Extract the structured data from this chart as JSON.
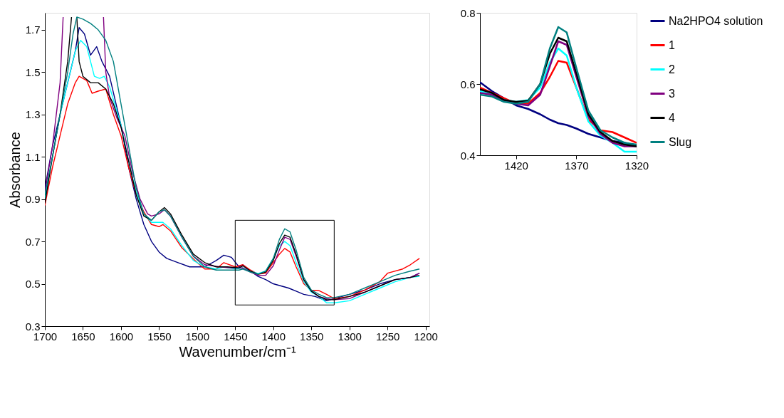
{
  "chart_data": [
    {
      "type": "line",
      "xlabel": "Wavenumber/cm⁻¹",
      "ylabel": "Absorbance",
      "xlim": [
        1700,
        1195
      ],
      "ylim": [
        0.3,
        1.78
      ],
      "xticks": [
        1700,
        1650,
        1600,
        1550,
        1500,
        1450,
        1400,
        1350,
        1300,
        1250,
        1200
      ],
      "yticks": [
        0.3,
        0.5,
        0.7,
        0.9,
        1.1,
        1.3,
        1.5,
        1.7
      ],
      "grid": false,
      "legend": false,
      "series": [
        {
          "color": "#000080",
          "x": [
            1700,
            1690,
            1680,
            1670,
            1660,
            1655,
            1648,
            1640,
            1632,
            1625,
            1615,
            1600,
            1590,
            1580,
            1570,
            1560,
            1550,
            1540,
            1525,
            1510,
            1490,
            1475,
            1465,
            1455,
            1445,
            1440,
            1430,
            1420,
            1410,
            1400,
            1390,
            1380,
            1370,
            1360,
            1345,
            1330,
            1320,
            1300,
            1280,
            1260,
            1240,
            1220,
            1208
          ],
          "values": [
            0.95,
            1.15,
            1.3,
            1.45,
            1.6,
            1.71,
            1.68,
            1.58,
            1.62,
            1.55,
            1.48,
            1.25,
            1.05,
            0.9,
            0.78,
            0.7,
            0.65,
            0.62,
            0.6,
            0.58,
            0.58,
            0.61,
            0.635,
            0.625,
            0.58,
            0.59,
            0.56,
            0.535,
            0.52,
            0.5,
            0.49,
            0.48,
            0.465,
            0.45,
            0.44,
            0.42,
            0.43,
            0.45,
            0.47,
            0.5,
            0.52,
            0.53,
            0.55
          ]
        },
        {
          "color": "#ff0000",
          "x": [
            1700,
            1690,
            1680,
            1670,
            1660,
            1655,
            1645,
            1638,
            1630,
            1620,
            1610,
            1600,
            1590,
            1580,
            1570,
            1560,
            1550,
            1545,
            1535,
            1520,
            1500,
            1490,
            1475,
            1465,
            1450,
            1440,
            1430,
            1420,
            1410,
            1400,
            1392,
            1385,
            1378,
            1370,
            1360,
            1350,
            1340,
            1330,
            1320,
            1300,
            1280,
            1260,
            1250,
            1230,
            1220,
            1208
          ],
          "values": [
            0.87,
            1.05,
            1.2,
            1.35,
            1.45,
            1.48,
            1.46,
            1.4,
            1.41,
            1.42,
            1.3,
            1.2,
            1.05,
            0.92,
            0.84,
            0.78,
            0.77,
            0.78,
            0.75,
            0.67,
            0.6,
            0.57,
            0.57,
            0.6,
            0.58,
            0.59,
            0.565,
            0.545,
            0.55,
            0.6,
            0.64,
            0.667,
            0.65,
            0.58,
            0.5,
            0.47,
            0.468,
            0.45,
            0.43,
            0.44,
            0.47,
            0.51,
            0.55,
            0.57,
            0.59,
            0.62
          ]
        },
        {
          "color": "#00ffff",
          "x": [
            1700,
            1690,
            1680,
            1670,
            1660,
            1653,
            1645,
            1635,
            1628,
            1622,
            1615,
            1600,
            1590,
            1580,
            1570,
            1560,
            1550,
            1545,
            1535,
            1520,
            1505,
            1490,
            1475,
            1465,
            1450,
            1440,
            1430,
            1420,
            1410,
            1400,
            1392,
            1385,
            1378,
            1370,
            1360,
            1350,
            1340,
            1330,
            1320,
            1300,
            1280,
            1260,
            1240,
            1220,
            1208
          ],
          "values": [
            0.9,
            1.1,
            1.3,
            1.45,
            1.6,
            1.65,
            1.62,
            1.48,
            1.47,
            1.48,
            1.43,
            1.25,
            1.08,
            0.93,
            0.83,
            0.79,
            0.79,
            0.79,
            0.76,
            0.68,
            0.61,
            0.58,
            0.57,
            0.58,
            0.57,
            0.575,
            0.56,
            0.548,
            0.56,
            0.62,
            0.68,
            0.7,
            0.68,
            0.6,
            0.51,
            0.46,
            0.44,
            0.41,
            0.41,
            0.42,
            0.45,
            0.48,
            0.51,
            0.53,
            0.535
          ]
        },
        {
          "color": "#800080",
          "x": [
            1700,
            1690,
            1680,
            1676,
            1665,
            1625,
            1623,
            1620,
            1615,
            1605,
            1595,
            1585,
            1575,
            1565,
            1560,
            1550,
            1543,
            1535,
            1520,
            1505,
            1490,
            1470,
            1455,
            1440,
            1430,
            1420,
            1410,
            1400,
            1392,
            1385,
            1378,
            1370,
            1360,
            1350,
            1340,
            1330,
            1320,
            1300,
            1280,
            1260,
            1240,
            1220,
            1208
          ],
          "values": [
            0.93,
            1.15,
            1.45,
            1.76,
            null,
            null,
            1.76,
            1.5,
            1.38,
            1.28,
            1.2,
            1.03,
            0.9,
            0.83,
            0.82,
            0.83,
            0.85,
            0.82,
            0.72,
            0.63,
            0.59,
            0.58,
            0.575,
            0.575,
            0.555,
            0.54,
            0.54,
            0.585,
            0.66,
            0.72,
            0.71,
            0.63,
            0.52,
            0.465,
            0.44,
            0.43,
            0.425,
            0.43,
            0.46,
            0.49,
            0.52,
            0.53,
            0.55
          ]
        },
        {
          "color": "#000000",
          "x": [
            1700,
            1690,
            1680,
            1670,
            1665,
            1660,
            1658,
            1655,
            1650,
            1640,
            1630,
            1620,
            1610,
            1600,
            1590,
            1580,
            1570,
            1560,
            1550,
            1543,
            1535,
            1520,
            1505,
            1490,
            1475,
            1460,
            1445,
            1440,
            1430,
            1420,
            1410,
            1400,
            1392,
            1385,
            1378,
            1370,
            1360,
            1350,
            1340,
            1330,
            1320,
            1300,
            1280,
            1260,
            1240,
            1220,
            1208
          ],
          "values": [
            0.88,
            1.1,
            1.3,
            1.55,
            1.76,
            null,
            1.76,
            1.55,
            1.48,
            1.45,
            1.45,
            1.42,
            1.35,
            1.24,
            1.08,
            0.92,
            0.82,
            0.8,
            0.84,
            0.86,
            0.83,
            0.73,
            0.64,
            0.6,
            0.58,
            0.58,
            0.575,
            0.585,
            0.56,
            0.545,
            0.555,
            0.61,
            0.69,
            0.73,
            0.72,
            0.64,
            0.52,
            0.465,
            0.44,
            0.425,
            0.425,
            0.44,
            0.46,
            0.49,
            0.52,
            0.53,
            0.54
          ]
        },
        {
          "color": "#008080",
          "x": [
            1700,
            1690,
            1680,
            1670,
            1663,
            1658,
            1650,
            1640,
            1630,
            1620,
            1610,
            1600,
            1590,
            1580,
            1570,
            1560,
            1550,
            1543,
            1535,
            1520,
            1505,
            1490,
            1475,
            1460,
            1445,
            1440,
            1430,
            1420,
            1410,
            1400,
            1392,
            1385,
            1378,
            1370,
            1360,
            1350,
            1340,
            1330,
            1320,
            1300,
            1280,
            1260,
            1240,
            1220,
            1208
          ],
          "values": [
            0.92,
            1.1,
            1.3,
            1.5,
            1.68,
            1.76,
            1.75,
            1.73,
            1.7,
            1.65,
            1.55,
            1.35,
            1.15,
            0.95,
            0.83,
            0.8,
            0.84,
            0.85,
            0.82,
            0.72,
            0.63,
            0.58,
            0.565,
            0.565,
            0.565,
            0.57,
            0.555,
            0.545,
            0.56,
            0.62,
            0.71,
            0.76,
            0.745,
            0.66,
            0.53,
            0.47,
            0.45,
            0.435,
            0.435,
            0.45,
            0.48,
            0.51,
            0.54,
            0.56,
            0.57
          ]
        }
      ]
    },
    {
      "type": "line",
      "xlim": [
        1450,
        1320
      ],
      "ylim": [
        0.4,
        0.8
      ],
      "xticks": [
        1420,
        1370,
        1320
      ],
      "yticks": [
        0.4,
        0.6,
        0.8
      ],
      "grid": false,
      "legend": "right",
      "x": [
        1450,
        1440,
        1430,
        1420,
        1410,
        1400,
        1392,
        1385,
        1378,
        1370,
        1360,
        1350,
        1340,
        1330,
        1320
      ],
      "series": [
        {
          "name": "Na2HPO4 solution",
          "color": "#000080",
          "values": [
            0.605,
            0.58,
            0.56,
            0.54,
            0.53,
            0.515,
            0.5,
            0.49,
            0.485,
            0.475,
            0.46,
            0.45,
            0.44,
            0.435,
            0.425
          ]
        },
        {
          "name": "1",
          "color": "#ff0000",
          "values": [
            0.59,
            0.575,
            0.56,
            0.545,
            0.545,
            0.575,
            0.62,
            0.665,
            0.66,
            0.59,
            0.5,
            0.47,
            0.465,
            0.45,
            0.435
          ]
        },
        {
          "name": "2",
          "color": "#00ffff",
          "values": [
            0.58,
            0.57,
            0.555,
            0.55,
            0.555,
            0.59,
            0.66,
            0.7,
            0.68,
            0.59,
            0.495,
            0.455,
            0.435,
            0.41,
            0.41
          ]
        },
        {
          "name": "3",
          "color": "#800080",
          "values": [
            0.575,
            0.57,
            0.555,
            0.545,
            0.54,
            0.57,
            0.65,
            0.72,
            0.71,
            0.62,
            0.51,
            0.46,
            0.435,
            0.425,
            0.425
          ]
        },
        {
          "name": "4",
          "color": "#000000",
          "values": [
            0.585,
            0.575,
            0.555,
            0.55,
            0.553,
            0.6,
            0.685,
            0.73,
            0.72,
            0.63,
            0.515,
            0.465,
            0.44,
            0.43,
            0.425
          ]
        },
        {
          "name": "Slug",
          "color": "#008080",
          "values": [
            0.57,
            0.565,
            0.55,
            0.545,
            0.55,
            0.6,
            0.7,
            0.76,
            0.745,
            0.645,
            0.525,
            0.47,
            0.45,
            0.435,
            0.43
          ]
        }
      ]
    }
  ]
}
